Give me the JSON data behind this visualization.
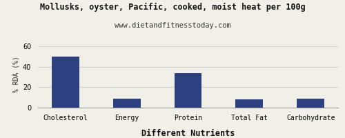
{
  "title": "Mollusks, oyster, Pacific, cooked, moist heat per 100g",
  "subtitle": "www.dietandfitnesstoday.com",
  "xlabel": "Different Nutrients",
  "ylabel": "% RDA (%)",
  "categories": [
    "Cholesterol",
    "Energy",
    "Protein",
    "Total Fat",
    "Carbohydrate"
  ],
  "values": [
    50,
    9,
    34,
    8,
    9
  ],
  "bar_color": "#2d4080",
  "ylim": [
    0,
    65
  ],
  "yticks": [
    0,
    20,
    40,
    60
  ],
  "background_color": "#f0f0e8",
  "title_fontsize": 8.5,
  "subtitle_fontsize": 7.5,
  "xlabel_fontsize": 8.5,
  "ylabel_fontsize": 7,
  "tick_fontsize": 7
}
